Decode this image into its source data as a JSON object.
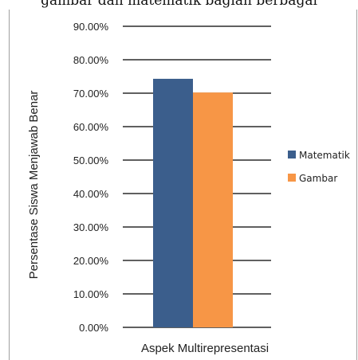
{
  "top_caption": "gambar dan matematik bagian berbagai",
  "colors": {
    "matematik": "#3b5e8c",
    "gambar": "#f79646",
    "gridline": "#000000"
  },
  "chart_data": {
    "type": "bar",
    "categories": [
      "Aspek Multirepresentasi"
    ],
    "series": [
      {
        "name": "Matematik",
        "values": [
          74.3
        ]
      },
      {
        "name": "Gambar",
        "values": [
          70.2
        ]
      }
    ],
    "xlabel": "Aspek Multirepresentasi",
    "ylabel": "Persentase Siswa Menjawab Benar",
    "ylim": [
      0,
      90
    ],
    "yticks": [
      "0.00%",
      "10.00%",
      "20.00%",
      "30.00%",
      "40.00%",
      "50.00%",
      "60.00%",
      "70.00%",
      "80.00%",
      "90.00%"
    ],
    "grid": true,
    "legend": "right"
  }
}
